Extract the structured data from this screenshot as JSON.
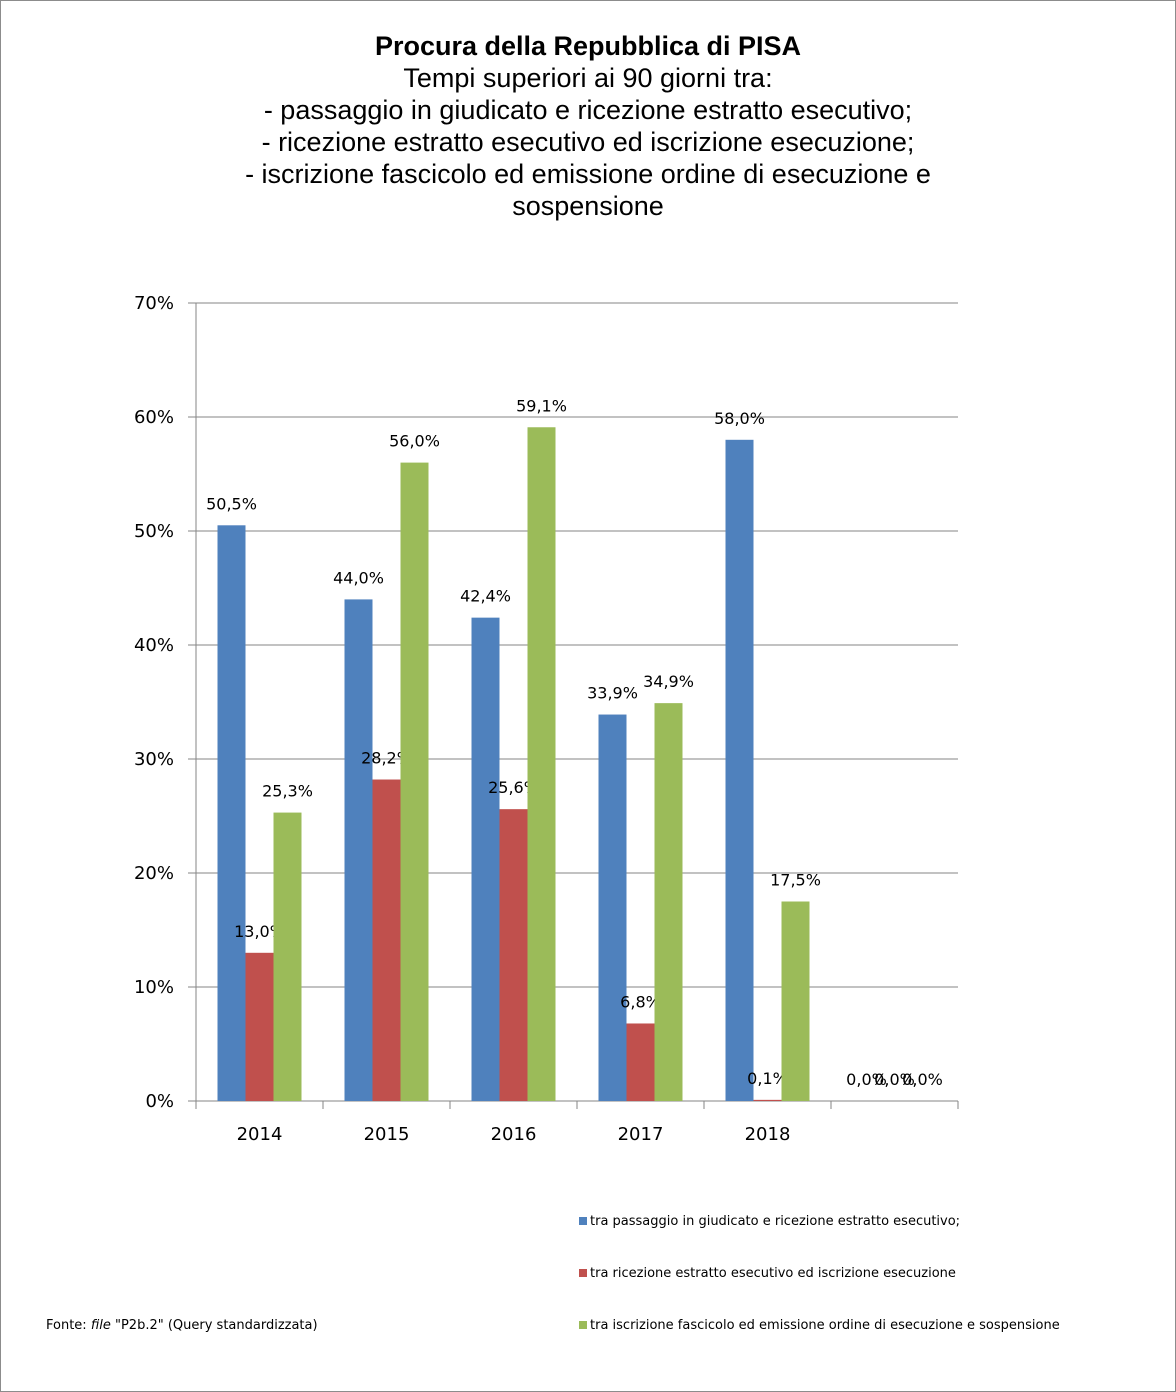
{
  "chart_data": {
    "type": "bar",
    "title": "Procura della Repubblica di PISA",
    "subtitle_lines": [
      "Tempi superiori ai 90 giorni tra:",
      "- passaggio in giudicato e ricezione estratto esecutivo;",
      "- ricezione estratto esecutivo ed iscrizione esecuzione;",
      "- iscrizione fascicolo ed emissione ordine di esecuzione e",
      "sospensione"
    ],
    "categories": [
      "2014",
      "2015",
      "2016",
      "2017",
      "2018",
      ""
    ],
    "series": [
      {
        "name": "tra passaggio in giudicato e ricezione estratto esecutivo;",
        "color": "#4f81bd",
        "values": [
          50.5,
          44.0,
          42.4,
          33.9,
          58.0,
          0.0
        ],
        "labels": [
          "50,5%",
          "44,0%",
          "42,4%",
          "33,9%",
          "58,0%",
          "0,0%"
        ]
      },
      {
        "name": "tra ricezione estratto esecutivo ed iscrizione esecuzione",
        "color": "#c0504d",
        "values": [
          13.0,
          28.2,
          25.6,
          6.8,
          0.1,
          0.0
        ],
        "labels": [
          "13,0%",
          "28,2%",
          "25,6%",
          "6,8%",
          "0,1%",
          "0,0%"
        ]
      },
      {
        "name": "tra iscrizione fascicolo ed emissione ordine di esecuzione e sospensione",
        "color": "#9bbb59",
        "values": [
          25.3,
          56.0,
          59.1,
          34.9,
          17.5,
          0.0
        ],
        "labels": [
          "25,3%",
          "56,0%",
          "59,1%",
          "34,9%",
          "17,5%",
          "0,0%"
        ]
      }
    ],
    "y_ticks": [
      "0%",
      "10%",
      "20%",
      "30%",
      "40%",
      "50%",
      "60%",
      "70%"
    ],
    "ylim": [
      0,
      70
    ],
    "grid": true,
    "legend_position": "bottom-right"
  },
  "source": {
    "prefix": "Fonte: ",
    "italic": "file",
    "suffix": " \"P2b.2\" (Query standardizzata)"
  }
}
